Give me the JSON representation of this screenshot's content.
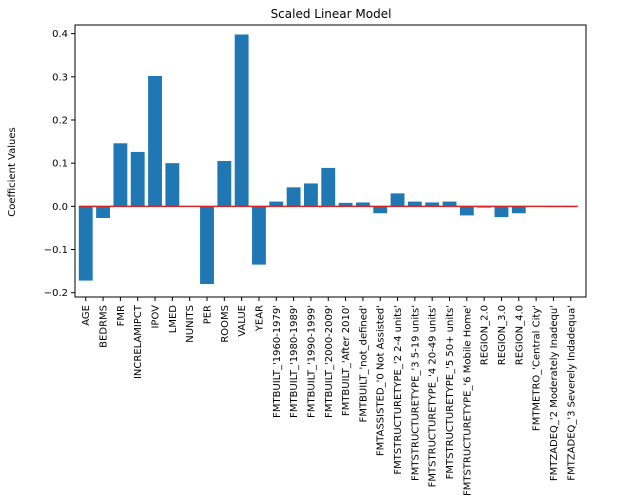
{
  "chart_data": {
    "type": "bar",
    "title": "Scaled Linear Model",
    "xlabel": "",
    "ylabel": "Coefficient Values",
    "ylim": [
      -0.21,
      0.42
    ],
    "yticks": [
      -0.2,
      -0.1,
      0.0,
      0.1,
      0.2,
      0.3,
      0.4
    ],
    "ytick_labels": [
      "−0.2",
      "−0.1",
      "0.0",
      "0.1",
      "0.2",
      "0.3",
      "0.4"
    ],
    "grid": false,
    "bar_color": "#1f77b4",
    "zero_line_color": "#d62728",
    "categories": [
      "AGE",
      "BEDRMS",
      "FMR",
      "INCRELAMIPCT",
      "IPOV",
      "LMED",
      "NUNITS",
      "PER",
      "ROOMS",
      "VALUE",
      "YEAR",
      "FMTBUILT_'1960-1979'",
      "FMTBUILT_'1980-1989'",
      "FMTBUILT_'1990-1999'",
      "FMTBUILT_'2000-2009'",
      "FMTBUILT_'After 2010'",
      "FMTBUILT_'not_defined'",
      "FMTASSISTED_'0 Not Assisted'",
      "FMTSTRUCTURETYPE_'2 2-4 units'",
      "FMTSTRUCTURETYPE_'3 5-19 units'",
      "FMTSTRUCTURETYPE_'4 20-49 units'",
      "FMTSTRUCTURETYPE_'5 50+ units'",
      "FMTSTRUCTURETYPE_'6 Mobile Home'",
      "REGION_2.0",
      "REGION_3.0",
      "REGION_4.0",
      "FMTMETRO_'Central City'",
      "FMTZADEQ_'2 Moderately Inadequ'",
      "FMTZADEQ_'3 Severely Indadequa'"
    ],
    "values": [
      -0.172,
      -0.027,
      0.146,
      0.126,
      0.302,
      0.1,
      0.0,
      -0.18,
      0.105,
      0.398,
      -0.135,
      0.011,
      0.044,
      0.053,
      0.089,
      0.008,
      0.009,
      -0.016,
      0.03,
      0.011,
      0.009,
      0.011,
      -0.021,
      -0.003,
      -0.025,
      -0.016,
      0.0,
      -0.002,
      -0.002
    ]
  }
}
